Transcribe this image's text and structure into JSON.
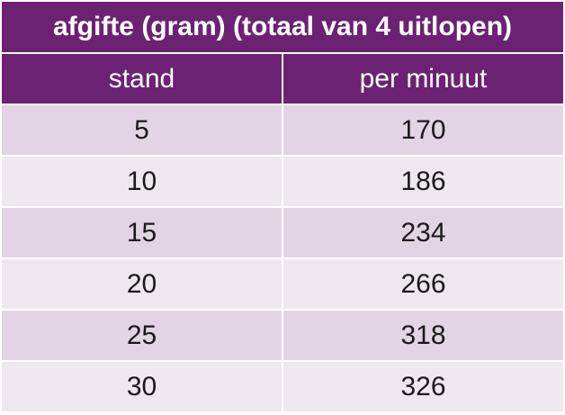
{
  "table": {
    "title": "afgifte (gram) (totaal van 4 uitlopen)",
    "header": [
      "stand",
      "per minuut"
    ],
    "rows": [
      [
        5,
        170
      ],
      [
        10,
        186
      ],
      [
        15,
        234
      ],
      [
        20,
        266
      ],
      [
        25,
        318
      ],
      [
        30,
        326
      ]
    ]
  }
}
